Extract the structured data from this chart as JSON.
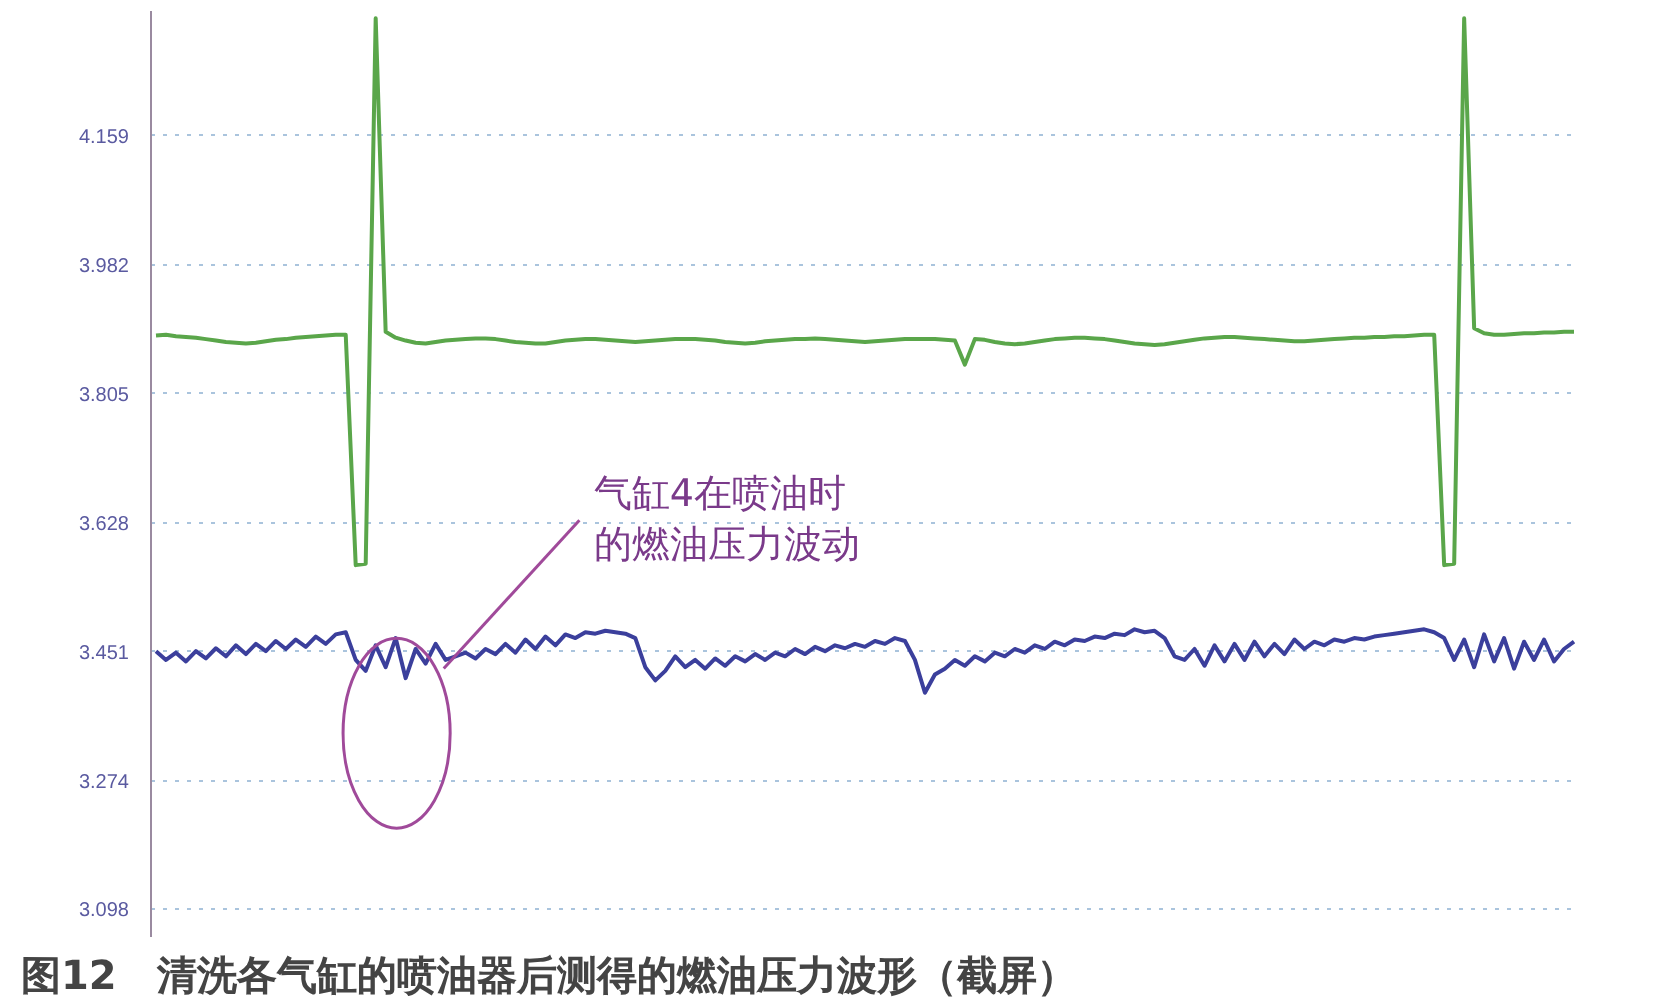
{
  "chart_data": {
    "type": "line",
    "title": "图12　清洗各气缸的喷油器后测得的燃油压力波形（截屏）",
    "categories": [
      null,
      null,
      null,
      null,
      null,
      null,
      null,
      null,
      null,
      null,
      null,
      null,
      null,
      null,
      null,
      null,
      null,
      null,
      null,
      null,
      null,
      null,
      null,
      null,
      null,
      null,
      null,
      null,
      null,
      null,
      null,
      null,
      null,
      null,
      null,
      null,
      null,
      null,
      null,
      null,
      null,
      null,
      null,
      null,
      null,
      null,
      null,
      null,
      null,
      null,
      null,
      null,
      null,
      null,
      null,
      null,
      null,
      null,
      null,
      null,
      null,
      null,
      null,
      null,
      null,
      null,
      null,
      null,
      null,
      null,
      null,
      null,
      null,
      null,
      null,
      null,
      null,
      null,
      null,
      null,
      null,
      null,
      null,
      null,
      null,
      null,
      null,
      null,
      null,
      null,
      null,
      null,
      null,
      null,
      null,
      null,
      null,
      null,
      null,
      null,
      null,
      null,
      null,
      null,
      null,
      null,
      null,
      null,
      null,
      null,
      null,
      null,
      null,
      null,
      null,
      null,
      null,
      null,
      null,
      null,
      null,
      null,
      null,
      null,
      null,
      null,
      null,
      null,
      null,
      null,
      null,
      null,
      null,
      null,
      null,
      null,
      null,
      null,
      null,
      null,
      null,
      null,
      null
    ],
    "series": [
      {
        "color": "#5aa64a",
        "values": [
          3.885,
          3.886,
          3.884,
          3.883,
          3.882,
          3.88,
          3.878,
          3.876,
          3.875,
          3.874,
          3.875,
          3.877,
          3.879,
          3.88,
          3.882,
          3.883,
          3.884,
          3.885,
          3.886,
          3.886,
          3.57,
          3.572,
          4.32,
          3.89,
          3.882,
          3.878,
          3.875,
          3.874,
          3.876,
          3.878,
          3.879,
          3.88,
          3.881,
          3.881,
          3.88,
          3.878,
          3.876,
          3.875,
          3.874,
          3.874,
          3.876,
          3.878,
          3.879,
          3.88,
          3.88,
          3.879,
          3.878,
          3.877,
          3.876,
          3.877,
          3.878,
          3.879,
          3.88,
          3.88,
          3.88,
          3.879,
          3.878,
          3.876,
          3.875,
          3.874,
          3.875,
          3.877,
          3.878,
          3.879,
          3.88,
          3.88,
          3.881,
          3.88,
          3.879,
          3.878,
          3.877,
          3.876,
          3.877,
          3.878,
          3.879,
          3.88,
          3.88,
          3.88,
          3.88,
          3.879,
          3.878,
          3.845,
          3.88,
          3.879,
          3.876,
          3.874,
          3.873,
          3.874,
          3.876,
          3.878,
          3.88,
          3.881,
          3.882,
          3.882,
          3.881,
          3.88,
          3.878,
          3.876,
          3.874,
          3.873,
          3.872,
          3.873,
          3.875,
          3.877,
          3.879,
          3.881,
          3.882,
          3.883,
          3.883,
          3.882,
          3.881,
          3.88,
          3.879,
          3.878,
          3.877,
          3.877,
          3.878,
          3.879,
          3.88,
          3.881,
          3.882,
          3.882,
          3.883,
          3.883,
          3.884,
          3.884,
          3.885,
          3.886,
          3.886,
          3.57,
          3.572,
          4.32,
          3.895,
          3.888,
          3.886,
          3.886,
          3.887,
          3.888,
          3.888,
          3.889,
          3.889,
          3.89,
          3.89
        ]
      },
      {
        "color": "#3b3f9c",
        "values": [
          3.452,
          3.44,
          3.45,
          3.438,
          3.452,
          3.442,
          3.456,
          3.445,
          3.46,
          3.448,
          3.462,
          3.452,
          3.466,
          3.455,
          3.468,
          3.458,
          3.472,
          3.462,
          3.475,
          3.478,
          3.44,
          3.425,
          3.46,
          3.43,
          3.47,
          3.415,
          3.455,
          3.435,
          3.462,
          3.44,
          3.445,
          3.45,
          3.442,
          3.455,
          3.448,
          3.462,
          3.45,
          3.468,
          3.455,
          3.472,
          3.46,
          3.475,
          3.47,
          3.478,
          3.476,
          3.48,
          3.478,
          3.476,
          3.47,
          3.43,
          3.412,
          3.425,
          3.445,
          3.43,
          3.44,
          3.428,
          3.442,
          3.432,
          3.445,
          3.438,
          3.448,
          3.44,
          3.45,
          3.445,
          3.455,
          3.448,
          3.458,
          3.452,
          3.46,
          3.456,
          3.462,
          3.458,
          3.466,
          3.462,
          3.47,
          3.466,
          3.44,
          3.395,
          3.42,
          3.428,
          3.44,
          3.432,
          3.445,
          3.438,
          3.45,
          3.445,
          3.455,
          3.45,
          3.46,
          3.455,
          3.465,
          3.46,
          3.468,
          3.466,
          3.472,
          3.47,
          3.476,
          3.474,
          3.482,
          3.478,
          3.48,
          3.47,
          3.445,
          3.44,
          3.455,
          3.432,
          3.46,
          3.438,
          3.462,
          3.44,
          3.465,
          3.445,
          3.462,
          3.448,
          3.468,
          3.455,
          3.465,
          3.46,
          3.468,
          3.465,
          3.47,
          3.468,
          3.472,
          3.474,
          3.476,
          3.478,
          3.48,
          3.482,
          3.478,
          3.47,
          3.44,
          3.468,
          3.43,
          3.475,
          3.438,
          3.47,
          3.428,
          3.465,
          3.44,
          3.468,
          3.438,
          3.455,
          3.465
        ]
      }
    ],
    "ylim": [
      3.06,
      4.33
    ],
    "yticks": [
      3.098,
      3.274,
      3.451,
      3.628,
      3.805,
      3.982,
      4.159
    ],
    "grid": "y",
    "tick_labels": "y",
    "line_style": "solid",
    "annotations": [
      "气缸4在喷油时",
      "的燃油压力波动"
    ]
  }
}
